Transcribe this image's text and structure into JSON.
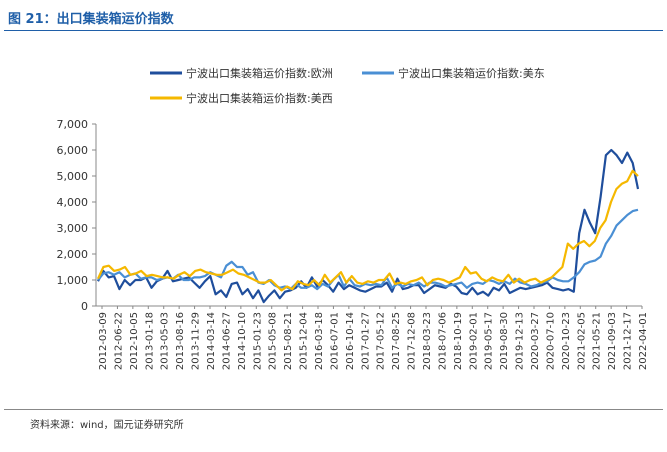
{
  "figure": {
    "title": "图 21：出口集装箱运价指数",
    "source": "资料来源：wind，国元证券研究所"
  },
  "chart_data": {
    "type": "line",
    "title": "",
    "xlabel": "",
    "ylabel": "",
    "ylim": [
      0,
      7000
    ],
    "yticks": [
      "0",
      "1,000",
      "2,000",
      "3,000",
      "4,000",
      "5,000",
      "6,000",
      "7,000"
    ],
    "ytick_values": [
      0,
      1000,
      2000,
      3000,
      4000,
      5000,
      6000,
      7000
    ],
    "xtick_labels": [
      "2012-03-09",
      "2012-06-22",
      "2012-10-05",
      "2013-01-18",
      "2013-05-03",
      "2013-08-16",
      "2013-11-29",
      "2014-03-14",
      "2014-06-27",
      "2014-10-10",
      "2015-01-23",
      "2015-05-08",
      "2015-08-21",
      "2015-12-04",
      "2016-03-18",
      "2016-07-01",
      "2016-10-14",
      "2017-01-27",
      "2017-05-12",
      "2017-08-25",
      "2017-12-08",
      "2018-03-23",
      "2018-07-06",
      "2018-10-19",
      "2019-02-01",
      "2019-05-17",
      "2019-08-30",
      "2019-12-13",
      "2020-03-27",
      "2020-07-10",
      "2020-10-23",
      "2021-02-05",
      "2021-05-21",
      "2021-09-03",
      "2021-12-17",
      "2022-04-01"
    ],
    "grid": false,
    "legend_position": "top",
    "series": [
      {
        "name": "宁波出口集装箱运价指数:欧洲",
        "color": "#1f4e9c",
        "values": [
          950,
          1350,
          1100,
          1150,
          650,
          1000,
          800,
          1000,
          1000,
          1100,
          700,
          950,
          1050,
          1350,
          950,
          1000,
          1050,
          1100,
          900,
          700,
          950,
          1150,
          450,
          600,
          350,
          850,
          900,
          450,
          650,
          300,
          600,
          150,
          400,
          600,
          300,
          550,
          600,
          700,
          950,
          700,
          1100,
          750,
          1000,
          800,
          550,
          900,
          650,
          800,
          700,
          600,
          550,
          650,
          750,
          750,
          900,
          550,
          1050,
          650,
          700,
          800,
          800,
          500,
          650,
          800,
          750,
          700,
          850,
          750,
          500,
          450,
          700,
          450,
          550,
          400,
          700,
          600,
          850,
          500,
          600,
          700,
          650,
          700,
          750,
          800,
          900,
          700,
          650,
          600,
          650,
          550,
          2800,
          3700,
          3200,
          2800,
          4200,
          5800,
          6000,
          5800,
          5500,
          5900,
          5500,
          4500
        ]
      },
      {
        "name": "宁波出口集装箱运价指数:美东",
        "color": "#4a8fd4",
        "values": [
          1000,
          1250,
          1300,
          1200,
          1300,
          1100,
          1200,
          1250,
          1050,
          1100,
          1100,
          1000,
          1050,
          1100,
          1050,
          1200,
          1000,
          1000,
          1100,
          1100,
          1150,
          1300,
          1200,
          1100,
          1550,
          1700,
          1500,
          1500,
          1200,
          1300,
          900,
          850,
          1000,
          800,
          700,
          750,
          650,
          850,
          700,
          700,
          800,
          650,
          850,
          750,
          1000,
          1200,
          750,
          1050,
          800,
          750,
          850,
          800,
          850,
          800,
          1100,
          700,
          850,
          750,
          850,
          800,
          900,
          750,
          900,
          900,
          850,
          750,
          800,
          850,
          900,
          700,
          850,
          900,
          850,
          1000,
          950,
          850,
          950,
          850,
          1050,
          900,
          850,
          750,
          800,
          900,
          950,
          1100,
          1000,
          950,
          950,
          1100,
          1300,
          1600,
          1700,
          1750,
          1900,
          2400,
          2700,
          3100,
          3300,
          3500,
          3650,
          3700
        ]
      },
      {
        "name": "宁波出口集装箱运价指数:美西",
        "color": "#f5b800",
        "values": [
          1050,
          1500,
          1550,
          1350,
          1400,
          1500,
          1200,
          1250,
          1350,
          1150,
          1200,
          1150,
          1100,
          1100,
          1050,
          1200,
          1300,
          1150,
          1350,
          1400,
          1300,
          1250,
          1200,
          1200,
          1300,
          1400,
          1250,
          1200,
          1100,
          1000,
          900,
          900,
          1000,
          800,
          600,
          750,
          650,
          950,
          850,
          800,
          1000,
          800,
          1200,
          900,
          1100,
          1300,
          900,
          1150,
          900,
          850,
          950,
          900,
          1000,
          1000,
          1250,
          850,
          900,
          850,
          950,
          1000,
          1100,
          800,
          1000,
          1050,
          1000,
          900,
          1000,
          1100,
          1500,
          1250,
          1300,
          1050,
          950,
          1100,
          1000,
          950,
          1200,
          900,
          1050,
          900,
          1000,
          1050,
          900,
          1000,
          1100,
          1300,
          1500,
          2400,
          2200,
          2400,
          2500,
          2300,
          2500,
          3000,
          3300,
          4000,
          4500,
          4700,
          4800,
          5200,
          5000
        ]
      }
    ]
  }
}
